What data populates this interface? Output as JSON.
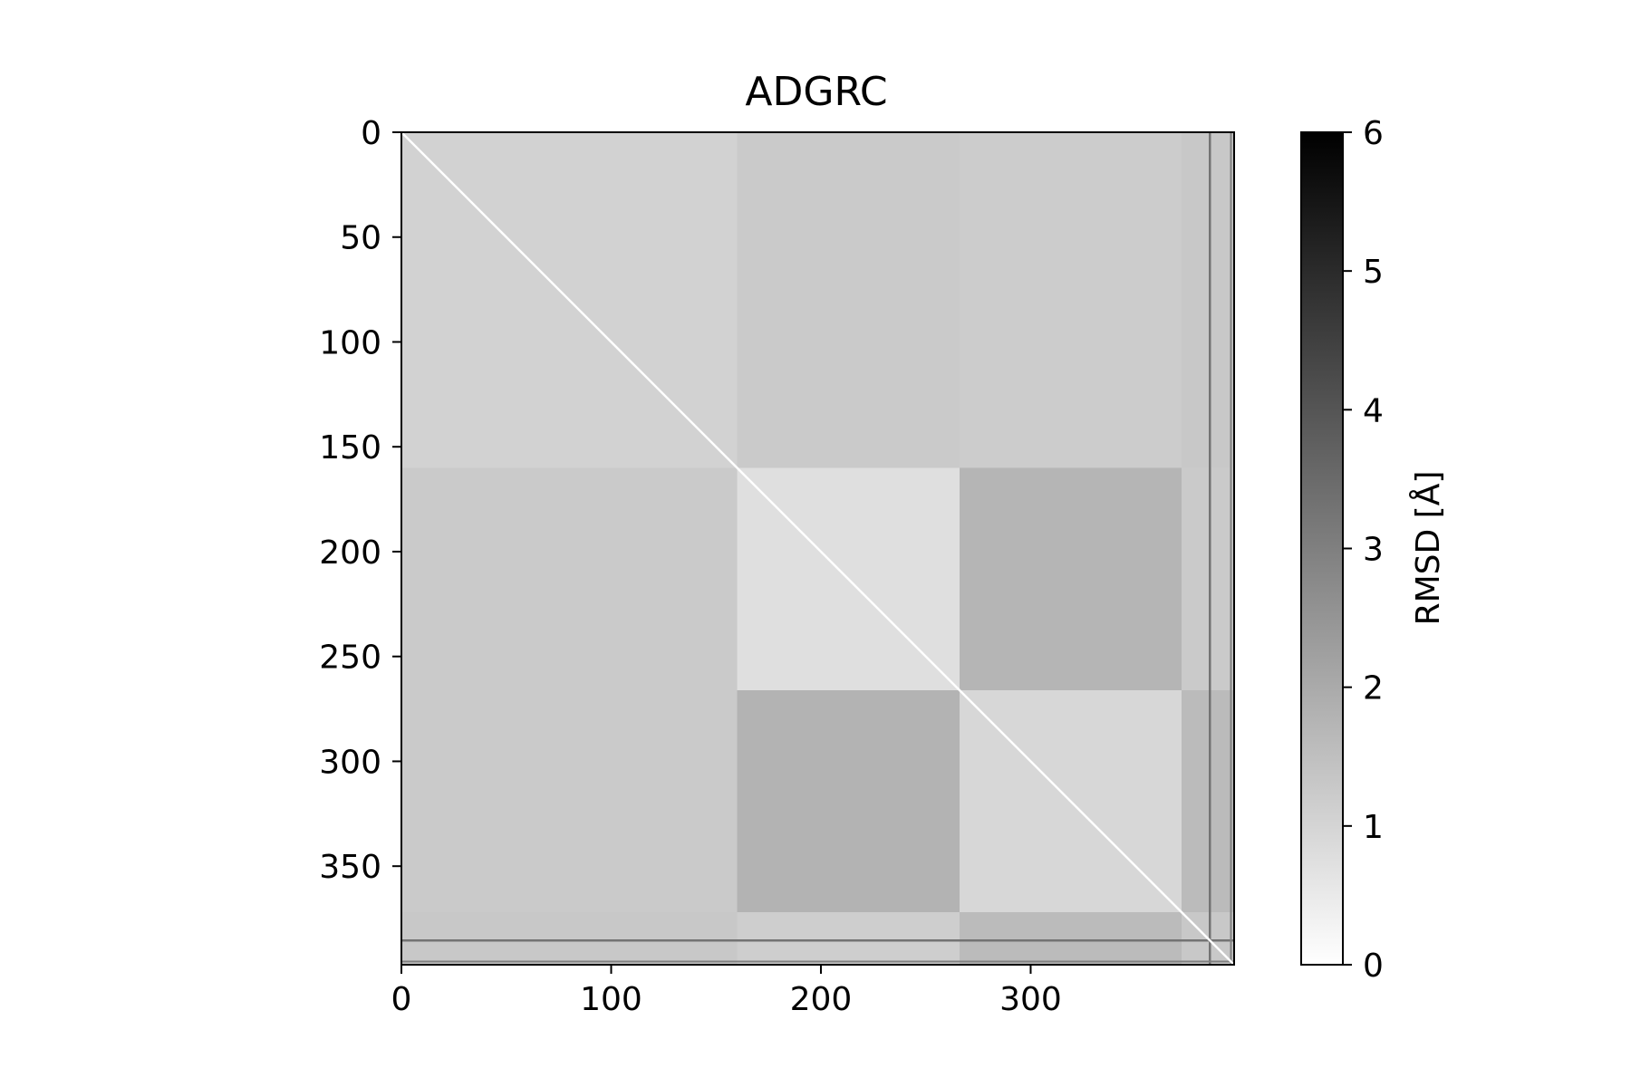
{
  "chart_data": {
    "type": "heatmap",
    "title": "ADGRC",
    "xlabel": "",
    "ylabel": "",
    "n": 397,
    "xlim": [
      0,
      397
    ],
    "ylim": [
      397,
      0
    ],
    "x_ticks": [
      0,
      100,
      200,
      300
    ],
    "y_ticks": [
      0,
      50,
      100,
      150,
      200,
      250,
      300,
      350
    ],
    "colorbar": {
      "label": "RMSD [Å]",
      "min": 0,
      "max": 6,
      "ticks": [
        0,
        1,
        2,
        3,
        4,
        5,
        6
      ],
      "colormap": "Greys",
      "color_low": "#ffffff",
      "color_high": "#000000"
    },
    "blocks": [
      {
        "rows": [
          0,
          160
        ],
        "cols": [
          0,
          160
        ],
        "rmsd": 1.05
      },
      {
        "rows": [
          0,
          160
        ],
        "cols": [
          160,
          266
        ],
        "rmsd": 1.25
      },
      {
        "rows": [
          0,
          160
        ],
        "cols": [
          266,
          372
        ],
        "rmsd": 1.2
      },
      {
        "rows": [
          0,
          160
        ],
        "cols": [
          372,
          397
        ],
        "rmsd": 1.3
      },
      {
        "rows": [
          160,
          266
        ],
        "cols": [
          0,
          160
        ],
        "rmsd": 1.25
      },
      {
        "rows": [
          160,
          266
        ],
        "cols": [
          160,
          266
        ],
        "rmsd": 0.75
      },
      {
        "rows": [
          160,
          266
        ],
        "cols": [
          266,
          372
        ],
        "rmsd": 1.75
      },
      {
        "rows": [
          160,
          266
        ],
        "cols": [
          372,
          397
        ],
        "rmsd": 1.25
      },
      {
        "rows": [
          266,
          372
        ],
        "cols": [
          0,
          160
        ],
        "rmsd": 1.25
      },
      {
        "rows": [
          266,
          372
        ],
        "cols": [
          160,
          266
        ],
        "rmsd": 1.8
      },
      {
        "rows": [
          266,
          372
        ],
        "cols": [
          266,
          372
        ],
        "rmsd": 0.95
      },
      {
        "rows": [
          266,
          372
        ],
        "cols": [
          372,
          397
        ],
        "rmsd": 1.6
      },
      {
        "rows": [
          372,
          397
        ],
        "cols": [
          0,
          160
        ],
        "rmsd": 1.3
      },
      {
        "rows": [
          372,
          397
        ],
        "cols": [
          160,
          266
        ],
        "rmsd": 1.15
      },
      {
        "rows": [
          372,
          397
        ],
        "cols": [
          266,
          372
        ],
        "rmsd": 1.6
      },
      {
        "rows": [
          372,
          397
        ],
        "cols": [
          372,
          397
        ],
        "rmsd": 1.3
      }
    ],
    "outlier_lines": [
      {
        "index": 385,
        "rmsd": 3.3
      },
      {
        "index": 395,
        "rmsd": 3.0
      }
    ],
    "diagonal_rmsd": 0
  }
}
